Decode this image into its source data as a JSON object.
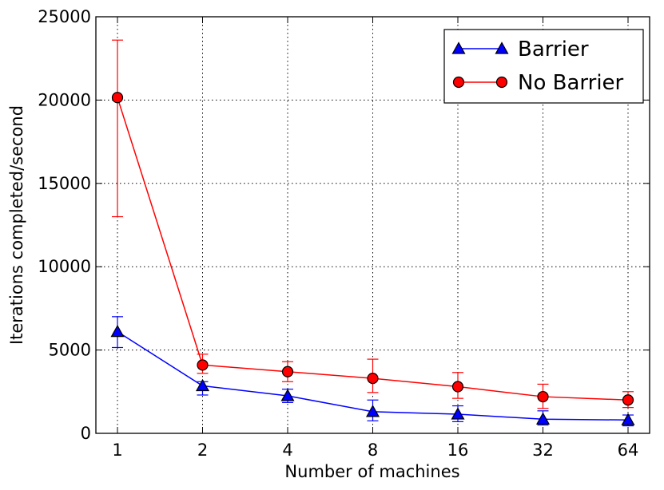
{
  "chart_data": {
    "type": "line",
    "categories": [
      "1",
      "2",
      "4",
      "8",
      "16",
      "32",
      "64"
    ],
    "xlabel": "Number of machines",
    "ylabel": "Iterations completed/second",
    "ylim": [
      0,
      25000
    ],
    "yticks": [
      "0",
      "5000",
      "10000",
      "15000",
      "20000",
      "25000"
    ],
    "grid": true,
    "legend_position": "top-right",
    "series": [
      {
        "name": "Barrier",
        "color": "#0000ff",
        "marker": "triangle",
        "values": [
          6100,
          2850,
          2250,
          1300,
          1150,
          850,
          800
        ],
        "error": [
          [
            5150,
            7000
          ],
          [
            2300,
            3100
          ],
          [
            1850,
            2650
          ],
          [
            750,
            2000
          ],
          [
            700,
            1650
          ],
          [
            500,
            1350
          ],
          [
            450,
            1100
          ]
        ]
      },
      {
        "name": "No Barrier",
        "color": "#ff0000",
        "marker": "circle",
        "values": [
          20150,
          4100,
          3700,
          3300,
          2800,
          2200,
          2000
        ],
        "error": [
          [
            13000,
            23600
          ],
          [
            3600,
            4750
          ],
          [
            3100,
            4300
          ],
          [
            2450,
            4450
          ],
          [
            2100,
            3650
          ],
          [
            1500,
            2950
          ],
          [
            1550,
            2500
          ]
        ]
      }
    ]
  }
}
